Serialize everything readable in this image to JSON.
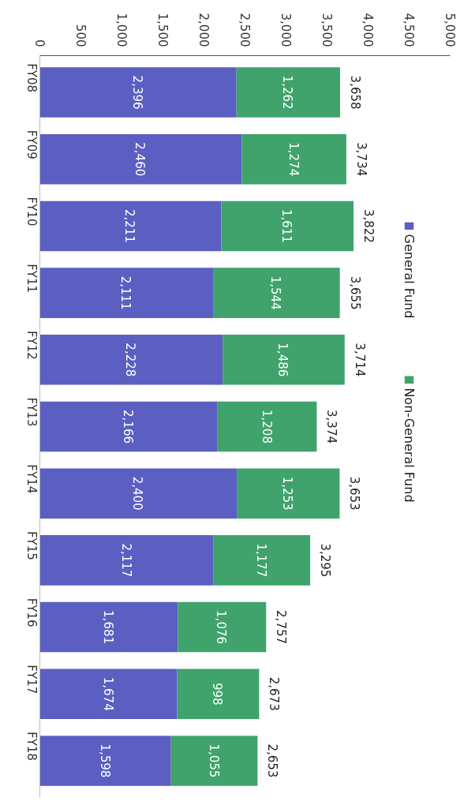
{
  "chart_data": {
    "type": "bar",
    "orientation": "horizontal",
    "stacked": true,
    "categories": [
      "FY08",
      "FY09",
      "FY10",
      "FY11",
      "FY12",
      "FY13",
      "FY14",
      "FY15",
      "FY16",
      "FY17",
      "FY18"
    ],
    "series": [
      {
        "name": "General Fund",
        "color": "#5b5fc2",
        "values": [
          2396,
          2460,
          2211,
          2111,
          2228,
          2166,
          2400,
          2117,
          1681,
          1674,
          1598
        ],
        "value_labels": [
          "2,396",
          "2,460",
          "2,211",
          "2,111",
          "2,228",
          "2,166",
          "2,400",
          "2,117",
          "1,681",
          "1,674",
          "1,598"
        ]
      },
      {
        "name": "Non-General Fund",
        "color": "#3fa36b",
        "values": [
          1262,
          1274,
          1611,
          1544,
          1486,
          1208,
          1253,
          1177,
          1076,
          998,
          1055
        ],
        "value_labels": [
          "1,262",
          "1,274",
          "1,611",
          "1,544",
          "1,486",
          "1,208",
          "1,253",
          "1,177",
          "1,076",
          "998",
          "1,055"
        ]
      }
    ],
    "totals": [
      "3,658",
      "3,734",
      "3,822",
      "3,655",
      "3,714",
      "3,374",
      "3,653",
      "3,295",
      "2,757",
      "2,673",
      "2,653"
    ],
    "xlim": [
      0,
      5000
    ],
    "xticks": [
      {
        "value": 0,
        "label": "0"
      },
      {
        "value": 500,
        "label": "500"
      },
      {
        "value": 1000,
        "label": "1,000"
      },
      {
        "value": 1500,
        "label": "1,500"
      },
      {
        "value": 2000,
        "label": "2,000"
      },
      {
        "value": 2500,
        "label": "2,500"
      },
      {
        "value": 3000,
        "label": "3,000"
      },
      {
        "value": 3500,
        "label": "3,500"
      },
      {
        "value": 4000,
        "label": "4,000"
      },
      {
        "value": 4500,
        "label": "4,500"
      },
      {
        "value": 5000,
        "label": "5,000"
      }
    ],
    "grid": false,
    "legend": "right"
  }
}
